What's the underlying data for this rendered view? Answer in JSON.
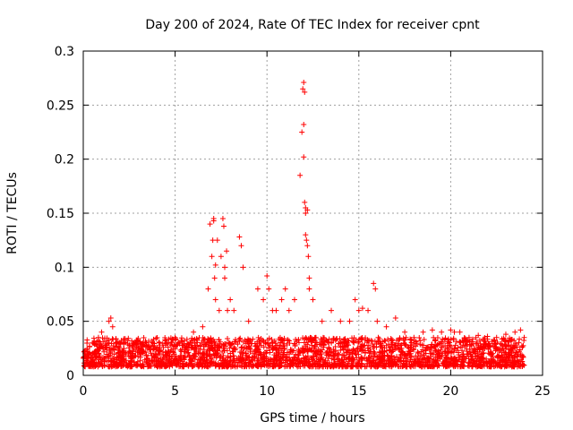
{
  "chart_data": {
    "type": "scatter",
    "title": "Day 200 of 2024, Rate Of TEC Index for receiver cpnt",
    "xlabel": "GPS time / hours",
    "ylabel": "ROTI / TECUs",
    "xlim": [
      0,
      25
    ],
    "ylim": [
      0,
      0.3
    ],
    "x_ticks": [
      0,
      5,
      10,
      15,
      20,
      25
    ],
    "x_tick_labels": [
      "0",
      "5",
      "10",
      "15",
      "20",
      "25"
    ],
    "y_ticks": [
      0,
      0.05,
      0.1,
      0.15,
      0.2,
      0.25,
      0.3
    ],
    "y_tick_labels": [
      "0",
      "0.05",
      "0.1",
      "0.15",
      "0.2",
      "0.25",
      "0.3"
    ],
    "grid": true,
    "marker": "+",
    "series": [
      {
        "name": "ROTI",
        "color": "#ff0000",
        "x": [
          0.1,
          0.5,
          1.0,
          1.4,
          1.5,
          1.6,
          2.0,
          2.5,
          3.0,
          3.5,
          4.0,
          4.5,
          5.0,
          5.5,
          6.0,
          6.5,
          6.8,
          6.9,
          7.0,
          7.05,
          7.1,
          7.1,
          7.15,
          7.2,
          7.2,
          7.3,
          7.4,
          7.5,
          7.6,
          7.65,
          7.7,
          7.7,
          7.8,
          7.85,
          8.0,
          8.2,
          8.5,
          8.6,
          8.7,
          9.0,
          9.5,
          9.8,
          10.0,
          10.1,
          10.3,
          10.5,
          10.8,
          11.0,
          11.2,
          11.5,
          11.8,
          11.9,
          11.95,
          12.0,
          12.0,
          12.0,
          12.05,
          12.05,
          12.1,
          12.1,
          12.1,
          12.15,
          12.2,
          12.2,
          12.25,
          12.3,
          12.3,
          12.5,
          13.0,
          13.5,
          14.0,
          14.5,
          14.8,
          15.0,
          15.2,
          15.5,
          15.8,
          15.9,
          16.0,
          16.5,
          17.0,
          17.5,
          18.0,
          18.5,
          19.0,
          19.5,
          20.0,
          20.2,
          20.5,
          21.0,
          21.5,
          22.0,
          22.5,
          23.0,
          23.5,
          23.8,
          24.0
        ],
        "y": [
          0.02,
          0.03,
          0.04,
          0.05,
          0.053,
          0.045,
          0.03,
          0.028,
          0.025,
          0.027,
          0.026,
          0.03,
          0.035,
          0.032,
          0.04,
          0.045,
          0.08,
          0.14,
          0.11,
          0.125,
          0.143,
          0.145,
          0.09,
          0.07,
          0.102,
          0.125,
          0.06,
          0.11,
          0.145,
          0.138,
          0.1,
          0.09,
          0.115,
          0.06,
          0.07,
          0.06,
          0.128,
          0.12,
          0.1,
          0.05,
          0.08,
          0.07,
          0.092,
          0.08,
          0.06,
          0.06,
          0.07,
          0.08,
          0.06,
          0.07,
          0.185,
          0.225,
          0.265,
          0.271,
          0.232,
          0.202,
          0.262,
          0.16,
          0.13,
          0.15,
          0.155,
          0.125,
          0.153,
          0.12,
          0.11,
          0.08,
          0.09,
          0.07,
          0.05,
          0.06,
          0.05,
          0.05,
          0.07,
          0.06,
          0.062,
          0.06,
          0.085,
          0.08,
          0.05,
          0.045,
          0.053,
          0.04,
          0.035,
          0.04,
          0.042,
          0.04,
          0.042,
          0.04,
          0.04,
          0.035,
          0.037,
          0.036,
          0.035,
          0.038,
          0.04,
          0.042,
          0.035
        ]
      }
    ],
    "baseline_band": {
      "x_range": [
        0,
        24
      ],
      "y_min": 0.008,
      "y_typical_max": 0.035,
      "note": "dense continuous band of points between 0.01 and ~0.035 TECU across the whole day"
    }
  }
}
